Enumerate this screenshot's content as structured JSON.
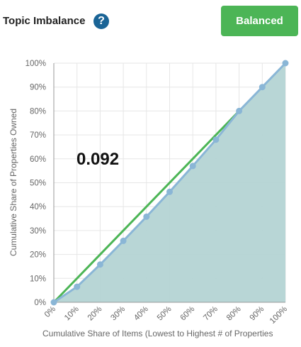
{
  "header": {
    "title": "Topic Imbalance",
    "help_icon": "question-circle-icon",
    "status_label": "Balanced"
  },
  "colors": {
    "accent": "#4cb556",
    "help": "#1a6496",
    "curve": "#8ab6d6",
    "fill": "#b4d4d4",
    "equality": "#4cb556"
  },
  "chart_data": {
    "type": "line",
    "title": "",
    "xlabel": "Cumulative Share of Items (Lowest to Highest # of Properties",
    "ylabel": "Cumulative Share of Properties Owned",
    "x_ticks": [
      "0%",
      "10%",
      "20%",
      "30%",
      "40%",
      "50%",
      "60%",
      "70%",
      "80%",
      "90%",
      "100%"
    ],
    "y_ticks": [
      "0%",
      "10%",
      "20%",
      "30%",
      "40%",
      "50%",
      "60%",
      "70%",
      "80%",
      "90%",
      "100%"
    ],
    "xlim": [
      0,
      100
    ],
    "ylim": [
      0,
      100
    ],
    "annotation": "0.092",
    "grid": true,
    "series": [
      {
        "x": [
          0,
          10,
          20,
          30,
          40,
          50,
          60,
          70,
          80,
          90,
          100
        ],
        "y": [
          0,
          6.5,
          15.8,
          25.7,
          35.8,
          46.2,
          57,
          68,
          80,
          90,
          100
        ]
      },
      {
        "x": [
          0,
          80
        ],
        "y": [
          0,
          80
        ]
      }
    ]
  }
}
